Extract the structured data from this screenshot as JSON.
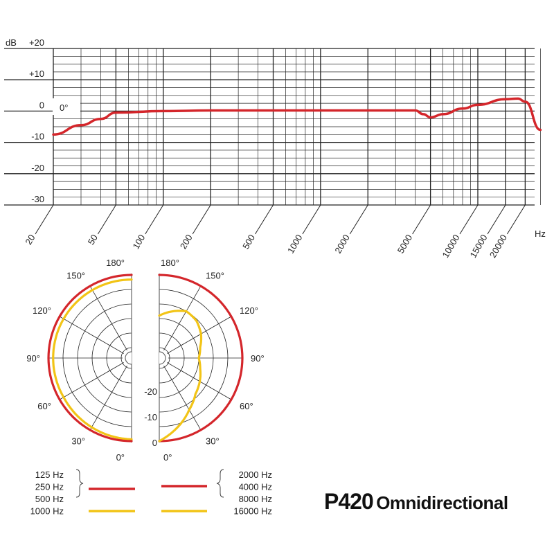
{
  "model": "P420",
  "pattern_name": "Omnidirectional",
  "colors": {
    "low": "#d4262b",
    "high": "#f2c416",
    "grid": "#222222"
  },
  "chart_data": [
    {
      "type": "line",
      "title": "",
      "xlabel": "Hz",
      "ylabel": "dB",
      "x_scale": "log",
      "xlim": [
        20,
        20000
      ],
      "ylim": [
        -30,
        20
      ],
      "x_ticks": [
        "20",
        "50",
        "100",
        "200",
        "500",
        "1000",
        "2000",
        "5000",
        "10000",
        "15000",
        "20000"
      ],
      "y_ticks": [
        "+20",
        "+10",
        "0",
        "-10",
        "-20",
        "-30"
      ],
      "annotation": "0°",
      "grid": true,
      "series": [
        {
          "name": "",
          "color": "#d4262b",
          "points": [
            [
              20,
              -7.5
            ],
            [
              30,
              -4.5
            ],
            [
              40,
              -2.5
            ],
            [
              50,
              -0.5
            ],
            [
              100,
              0
            ],
            [
              200,
              0.2
            ],
            [
              500,
              0.2
            ],
            [
              1000,
              0.2
            ],
            [
              2000,
              0.2
            ],
            [
              4000,
              0.2
            ],
            [
              4500,
              -1
            ],
            [
              5000,
              -2
            ],
            [
              6000,
              -1
            ],
            [
              8000,
              0.8
            ],
            [
              10000,
              2
            ],
            [
              15000,
              3.8
            ],
            [
              18000,
              4
            ],
            [
              20000,
              3
            ],
            [
              25000,
              -6
            ]
          ]
        }
      ]
    },
    {
      "type": "polar",
      "angle_labels": [
        "180°",
        "150°",
        "120°",
        "90°",
        "60°",
        "30°",
        "0°"
      ],
      "radial_labels": [
        "-20",
        "-10",
        "0"
      ],
      "legend_left": {
        "low": [
          "125 Hz",
          "250 Hz",
          "500 Hz"
        ],
        "high": [
          "1000 Hz"
        ]
      },
      "legend_right": {
        "low": [
          "2000 Hz",
          "4000 Hz",
          "8000 Hz"
        ],
        "high": [
          "16000 Hz"
        ]
      },
      "series": [
        {
          "name": "125 Hz / 250 Hz / 500 Hz",
          "color": "#d4262b",
          "side": "left",
          "db_by_angle": [
            [
              0,
              0
            ],
            [
              30,
              0
            ],
            [
              60,
              0
            ],
            [
              90,
              0
            ],
            [
              120,
              0
            ],
            [
              150,
              0
            ],
            [
              180,
              0
            ]
          ]
        },
        {
          "name": "1000 Hz",
          "color": "#f2c416",
          "side": "left",
          "db_by_angle": [
            [
              0,
              0
            ],
            [
              30,
              -0.5
            ],
            [
              60,
              -1
            ],
            [
              90,
              -1
            ],
            [
              120,
              -1
            ],
            [
              150,
              -1
            ],
            [
              180,
              -1
            ]
          ]
        },
        {
          "name": "2000 Hz / 4000 Hz / 8000 Hz",
          "color": "#d4262b",
          "side": "right",
          "db_by_angle": [
            [
              0,
              0
            ],
            [
              30,
              0
            ],
            [
              60,
              0
            ],
            [
              90,
              0
            ],
            [
              120,
              0
            ],
            [
              150,
              0
            ],
            [
              180,
              0
            ]
          ]
        },
        {
          "name": "16000 Hz",
          "color": "#f2c416",
          "side": "right",
          "db_by_angle": [
            [
              0,
              0
            ],
            [
              15,
              -4
            ],
            [
              30,
              -8
            ],
            [
              45,
              -11
            ],
            [
              60,
              -12.5
            ],
            [
              75,
              -14
            ],
            [
              90,
              -15
            ],
            [
              105,
              -14
            ],
            [
              120,
              -12
            ],
            [
              135,
              -10.5
            ],
            [
              150,
              -10
            ],
            [
              165,
              -12
            ],
            [
              180,
              -14
            ]
          ]
        }
      ]
    }
  ]
}
